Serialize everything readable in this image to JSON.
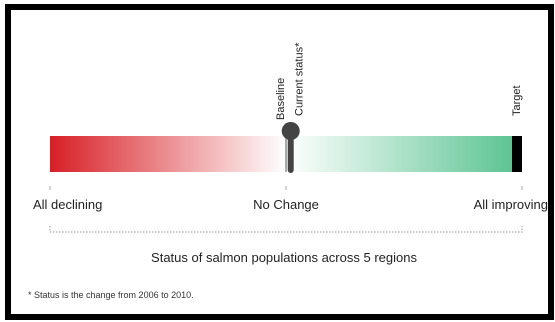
{
  "chart_data": {
    "type": "bar",
    "title": "Status of salmon populations across 5 regions",
    "scale": {
      "min_label": "All declining",
      "mid_label": "No Change",
      "max_label": "All improving",
      "min": -1,
      "max": 1
    },
    "markers": [
      {
        "label": "Baseline",
        "value": 0
      },
      {
        "label": "Current status*",
        "value": 0.02
      },
      {
        "label": "Target",
        "value": 1
      }
    ],
    "colors": {
      "declining": "#d81f26",
      "neutral": "#ffffff",
      "improving": "#57c28f",
      "target": "#000000",
      "marker": "#444444"
    }
  },
  "footnote": "* Status is the change from 2006 to 2010."
}
